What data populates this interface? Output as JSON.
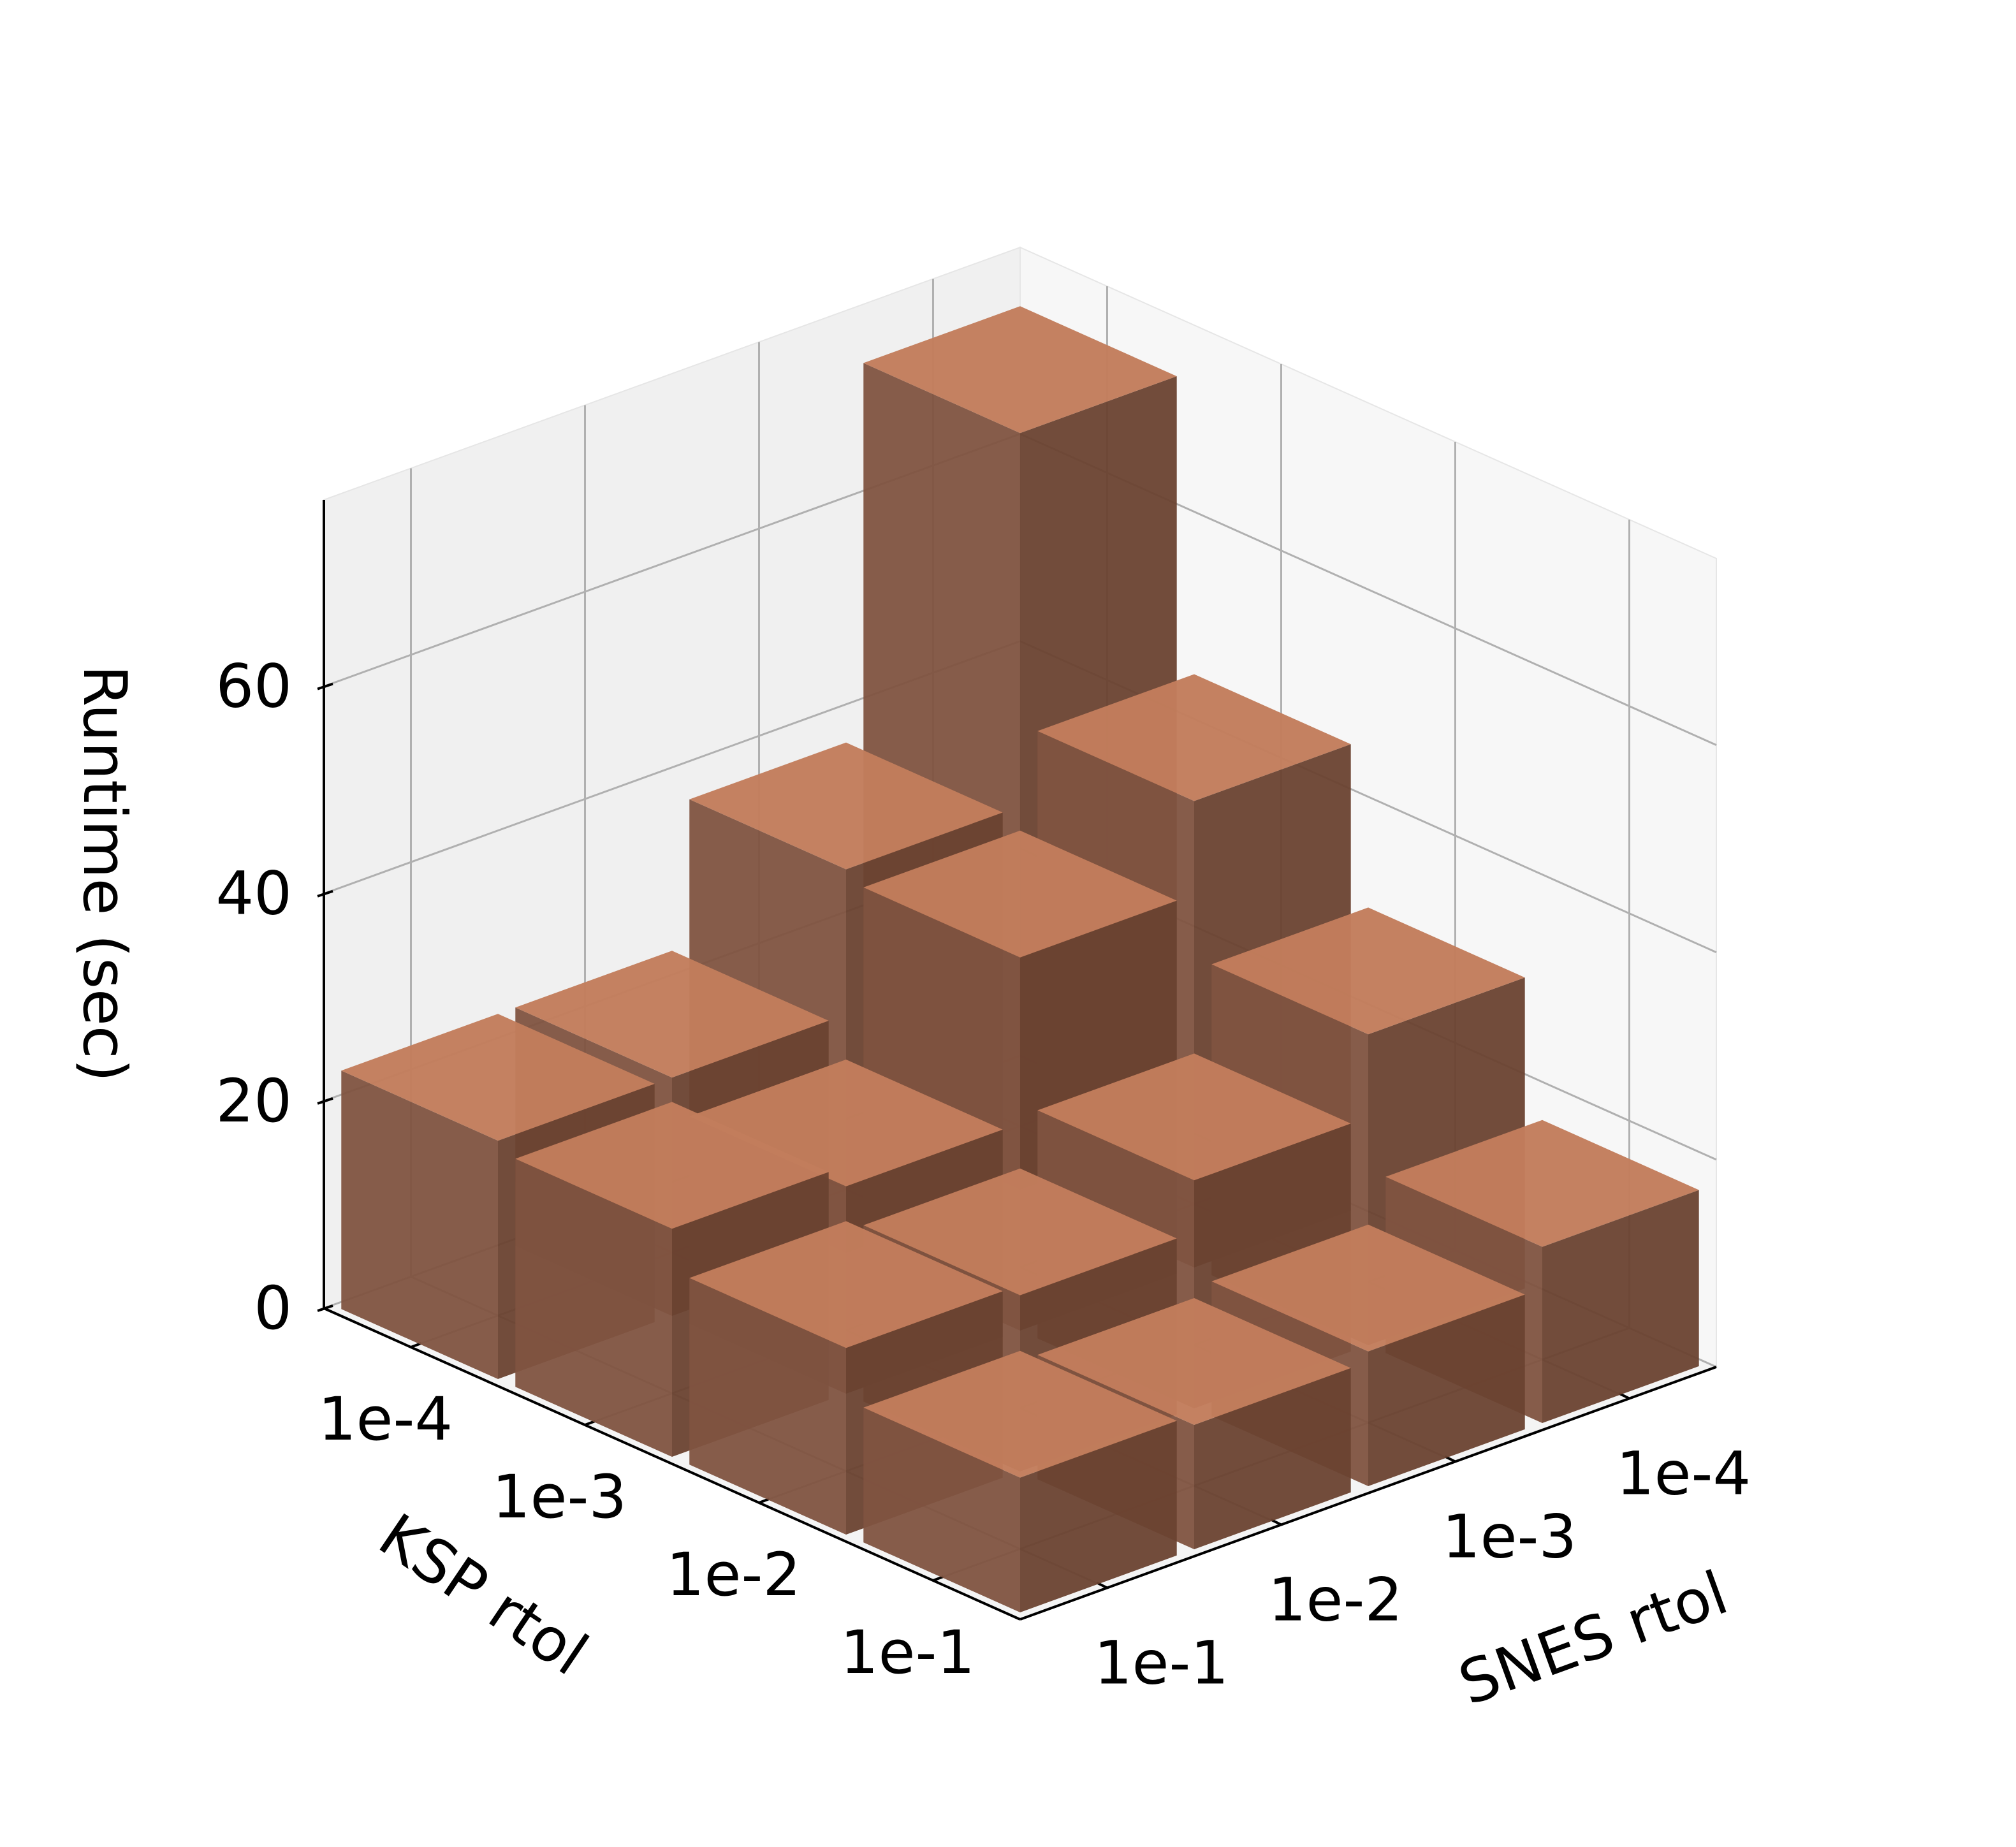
{
  "chart_data": {
    "type": "bar3d",
    "title": "",
    "xlabel": "KSP rtol",
    "ylabel": "SNES rtol",
    "zlabel": "Runtime (sec)",
    "ksp_categories": [
      "1e-4",
      "1e-3",
      "1e-2",
      "1e-1"
    ],
    "snes_categories": [
      "1e-1",
      "1e-2",
      "1e-3",
      "1e-4"
    ],
    "zticks": [
      "0",
      "20",
      "40",
      "60"
    ],
    "zlim": [
      0,
      78
    ],
    "grid": true,
    "bar_color": "#c27d5c",
    "bars": [
      {
        "ksp": "1e-4",
        "snes": "1e-4",
        "runtime": 73
      },
      {
        "ksp": "1e-4",
        "snes": "1e-3",
        "runtime": 37
      },
      {
        "ksp": "1e-4",
        "snes": "1e-2",
        "runtime": 23
      },
      {
        "ksp": "1e-4",
        "snes": "1e-1",
        "runtime": 23
      },
      {
        "ksp": "1e-3",
        "snes": "1e-4",
        "runtime": 45
      },
      {
        "ksp": "1e-3",
        "snes": "1e-3",
        "runtime": 36
      },
      {
        "ksp": "1e-3",
        "snes": "1e-2",
        "runtime": 20
      },
      {
        "ksp": "1e-3",
        "snes": "1e-1",
        "runtime": 22
      },
      {
        "ksp": "1e-2",
        "snes": "1e-4",
        "runtime": 30
      },
      {
        "ksp": "1e-2",
        "snes": "1e-3",
        "runtime": 22
      },
      {
        "ksp": "1e-2",
        "snes": "1e-2",
        "runtime": 17
      },
      {
        "ksp": "1e-2",
        "snes": "1e-1",
        "runtime": 18
      },
      {
        "ksp": "1e-1",
        "snes": "1e-4",
        "runtime": 17
      },
      {
        "ksp": "1e-1",
        "snes": "1e-3",
        "runtime": 13
      },
      {
        "ksp": "1e-1",
        "snes": "1e-2",
        "runtime": 12
      },
      {
        "ksp": "1e-1",
        "snes": "1e-1",
        "runtime": 13
      }
    ]
  }
}
